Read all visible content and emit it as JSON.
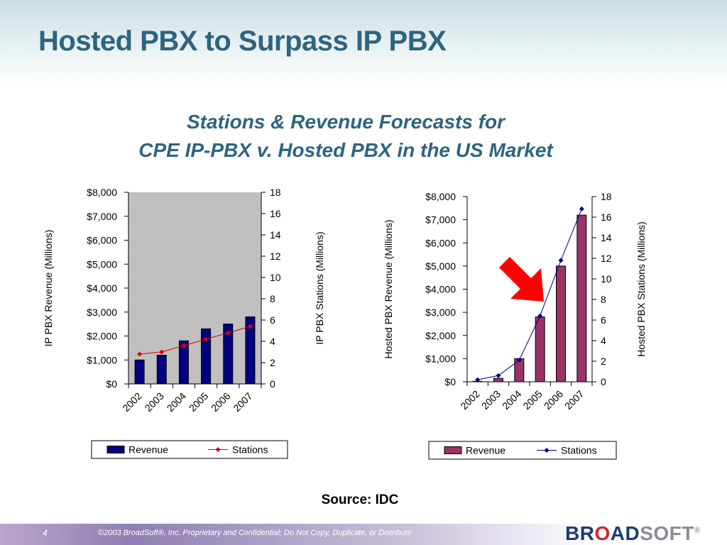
{
  "slide": {
    "title": "Hosted PBX to Surpass IP PBX",
    "subtitle_line1": "Stations & Revenue Forecasts for",
    "subtitle_line2": "CPE IP-PBX v. Hosted PBX in the US Market",
    "source": "Source: IDC"
  },
  "footer": {
    "page_number": "4",
    "copyright": "©2003 BroadSoft®, Inc. Proprietary and Confidential; Do Not Copy, Duplicate, or Distribute",
    "logo_part1": "BR",
    "logo_part2": "O",
    "logo_part3": "AD",
    "logo_part4": "SOFT",
    "logo_mark": "®"
  },
  "colors": {
    "title": "#2e6480",
    "ip_revenue": "#000080",
    "ip_stations": "#e00000",
    "hosted_revenue": "#993366",
    "hosted_stations": "#000080",
    "arrow": "#ff0000"
  },
  "chart_data": [
    {
      "type": "bar",
      "categories": [
        "2002",
        "2003",
        "2004",
        "2005",
        "2006",
        "2007"
      ],
      "ylabel": "IP PBX Revenue (Millions)",
      "y2label": "IP PBX Stations (Millions)",
      "ylim": [
        0,
        8000
      ],
      "y2lim": [
        0,
        18
      ],
      "yticks": [
        "$0",
        "$1,000",
        "$2,000",
        "$3,000",
        "$4,000",
        "$5,000",
        "$6,000",
        "$7,000",
        "$8,000"
      ],
      "y2ticks": [
        "0",
        "2",
        "4",
        "6",
        "8",
        "10",
        "12",
        "14",
        "16",
        "18"
      ],
      "series": [
        {
          "name": "Revenue",
          "kind": "bar",
          "axis": "left",
          "values": [
            1000,
            1200,
            1800,
            2300,
            2500,
            2800
          ]
        },
        {
          "name": "Stations",
          "kind": "line",
          "axis": "right",
          "values": [
            2.8,
            3.0,
            3.6,
            4.2,
            4.8,
            5.4
          ]
        }
      ],
      "legend": "bottom",
      "grid": false
    },
    {
      "type": "bar",
      "categories": [
        "2002",
        "2003",
        "2004",
        "2005",
        "2006",
        "2007"
      ],
      "ylabel": "Hosted PBX Revenue (Millions)",
      "y2label": "Hosted PBX Stations (Millions)",
      "ylim": [
        0,
        8000
      ],
      "y2lim": [
        0,
        18
      ],
      "yticks": [
        "$0",
        "$1,000",
        "$2,000",
        "$3,000",
        "$4,000",
        "$5,000",
        "$6,000",
        "$7,000",
        "$8,000"
      ],
      "y2ticks": [
        "0",
        "2",
        "4",
        "6",
        "8",
        "10",
        "12",
        "14",
        "16",
        "18"
      ],
      "series": [
        {
          "name": "Revenue",
          "kind": "bar",
          "axis": "left",
          "values": [
            20,
            150,
            1000,
            2800,
            5000,
            7200
          ]
        },
        {
          "name": "Stations",
          "kind": "line",
          "axis": "right",
          "values": [
            0.2,
            0.6,
            2.1,
            6.4,
            11.8,
            16.8
          ]
        }
      ],
      "legend": "bottom",
      "grid": false
    }
  ]
}
